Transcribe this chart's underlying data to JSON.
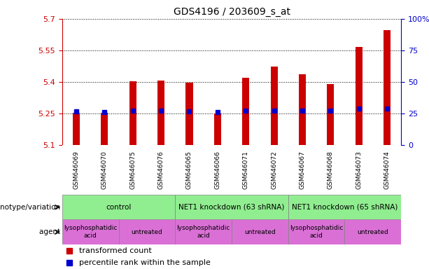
{
  "title": "GDS4196 / 203609_s_at",
  "samples": [
    "GSM646069",
    "GSM646070",
    "GSM646075",
    "GSM646076",
    "GSM646065",
    "GSM646066",
    "GSM646071",
    "GSM646072",
    "GSM646067",
    "GSM646068",
    "GSM646073",
    "GSM646074"
  ],
  "transformed_count": [
    5.255,
    5.255,
    5.403,
    5.408,
    5.398,
    5.252,
    5.421,
    5.472,
    5.436,
    5.39,
    5.568,
    5.647
  ],
  "bar_base": 5.1,
  "percentile_rank": [
    27.0,
    26.5,
    27.5,
    27.5,
    27.0,
    26.0,
    27.5,
    27.5,
    27.5,
    27.5,
    29.0,
    29.0
  ],
  "ylim_left": [
    5.1,
    5.7
  ],
  "ylim_right": [
    0,
    100
  ],
  "yticks_left": [
    5.1,
    5.25,
    5.4,
    5.55,
    5.7
  ],
  "yticks_right": [
    0,
    25,
    50,
    75,
    100
  ],
  "ytick_labels_left": [
    "5.1",
    "5.25",
    "5.4",
    "5.55",
    "5.7"
  ],
  "ytick_labels_right": [
    "0",
    "25",
    "50",
    "75",
    "100%"
  ],
  "bar_color": "#cc0000",
  "percentile_color": "#0000cc",
  "left_axis_color": "#cc0000",
  "right_axis_color": "#0000cc",
  "bar_width": 0.25,
  "genotype_groups": [
    {
      "label": "control",
      "start": 0,
      "end": 4,
      "color": "#90EE90"
    },
    {
      "label": "NET1 knockdown (63 shRNA)",
      "start": 4,
      "end": 8,
      "color": "#90EE90"
    },
    {
      "label": "NET1 knockdown (65 shRNA)",
      "start": 8,
      "end": 12,
      "color": "#90EE90"
    }
  ],
  "agent_groups": [
    {
      "label": "lysophosphatidic\nacid",
      "start": 0,
      "end": 2,
      "color": "#DA70D6"
    },
    {
      "label": "untreated",
      "start": 2,
      "end": 4,
      "color": "#DA70D6"
    },
    {
      "label": "lysophosphatidic\nacid",
      "start": 4,
      "end": 6,
      "color": "#DA70D6"
    },
    {
      "label": "untreated",
      "start": 6,
      "end": 8,
      "color": "#DA70D6"
    },
    {
      "label": "lysophosphatidic\nacid",
      "start": 8,
      "end": 10,
      "color": "#DA70D6"
    },
    {
      "label": "untreated",
      "start": 10,
      "end": 12,
      "color": "#DA70D6"
    }
  ],
  "legend_items": [
    {
      "label": "transformed count",
      "color": "#cc0000"
    },
    {
      "label": "percentile rank within the sample",
      "color": "#0000cc"
    }
  ]
}
